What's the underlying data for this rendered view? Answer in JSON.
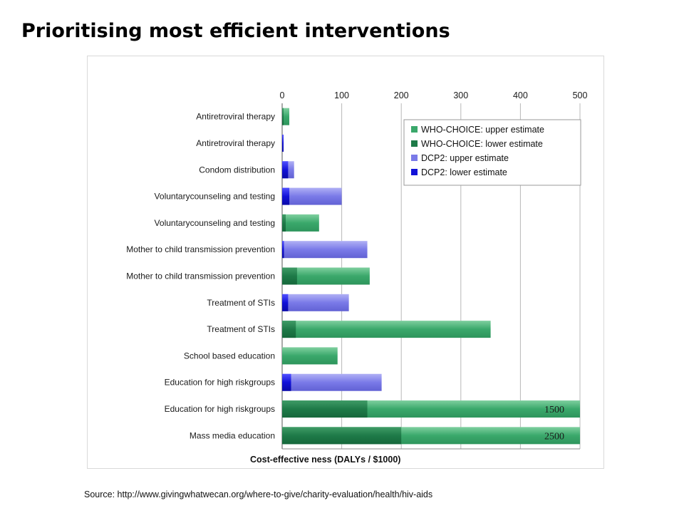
{
  "slide": {
    "title": "Prioritising most efficient interventions",
    "source": "Source: http://www.givingwhatwecan.org/where-to-give/charity-evaluation/health/hiv-aids"
  },
  "chart_data": {
    "type": "bar",
    "orientation": "horizontal",
    "xlabel": "Cost-effective ness   (DALYs / $1000)",
    "xlim": [
      0,
      500
    ],
    "xticks": [
      0,
      100,
      200,
      300,
      400,
      500
    ],
    "xaxis_position": "top",
    "grid": true,
    "legend_position": "top-right",
    "legend": [
      {
        "label": "WHO-CHOICE: upper estimate",
        "color": "#3aa86b"
      },
      {
        "label": "WHO-CHOICE: lower estimate",
        "color": "#1e7a48"
      },
      {
        "label": "DCP2: upper estimate",
        "color": "#7a7ae8"
      },
      {
        "label": "DCP2: lower estimate",
        "color": "#1212d8"
      }
    ],
    "categories": [
      {
        "label": "Antiretroviral therapy",
        "source": "WHO-CHOICE",
        "lower": 1,
        "upper": 12
      },
      {
        "label": "Antiretroviral therapy",
        "source": "DCP2",
        "lower": 1,
        "upper": 2
      },
      {
        "label": "Condom distribution",
        "source": "DCP2",
        "lower": 10,
        "upper": 20
      },
      {
        "label": "Voluntarycounseling and testing",
        "source": "DCP2",
        "lower": 12,
        "upper": 100
      },
      {
        "label": "Voluntarycounseling and testing",
        "source": "WHO-CHOICE",
        "lower": 6,
        "upper": 62
      },
      {
        "label": "Mother to child transmission prevention",
        "source": "DCP2",
        "lower": 3,
        "upper": 143
      },
      {
        "label": "Mother to child transmission prevention",
        "source": "WHO-CHOICE",
        "lower": 25,
        "upper": 147
      },
      {
        "label": "Treatment of STIs",
        "source": "DCP2",
        "lower": 10,
        "upper": 112
      },
      {
        "label": "Treatment of STIs",
        "source": "WHO-CHOICE",
        "lower": 23,
        "upper": 350
      },
      {
        "label": "School based education",
        "source": "WHO-CHOICE",
        "lower": 0,
        "upper": 93
      },
      {
        "label": "Education for high riskgroups",
        "source": "DCP2",
        "lower": 15,
        "upper": 167
      },
      {
        "label": "Education for high riskgroups",
        "source": "WHO-CHOICE",
        "lower": 143,
        "upper": 1500,
        "annotation": "1500"
      },
      {
        "label": "Mass media education",
        "source": "WHO-CHOICE",
        "lower": 200,
        "upper": 2500,
        "annotation": "2500"
      }
    ]
  }
}
